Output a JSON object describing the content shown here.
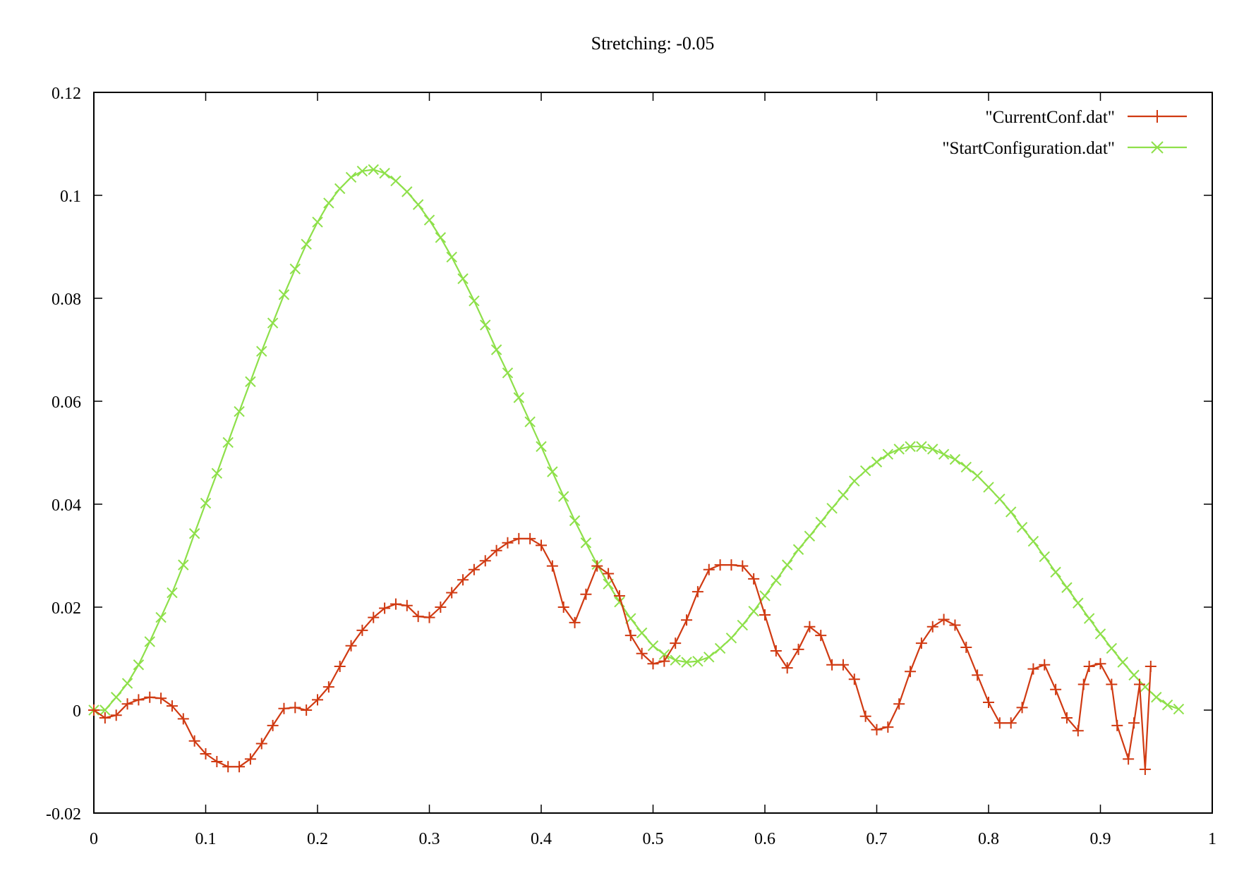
{
  "chart_data": {
    "type": "line",
    "title": "Stretching: -0.05",
    "xlabel": "",
    "ylabel": "",
    "xlim": [
      0,
      1
    ],
    "ylim": [
      -0.02,
      0.12
    ],
    "x_ticks": [
      "0",
      "0.1",
      "0.2",
      "0.3",
      "0.4",
      "0.5",
      "0.6",
      "0.7",
      "0.8",
      "0.9",
      "1"
    ],
    "y_ticks": [
      "-0.02",
      "0",
      "0.02",
      "0.04",
      "0.06",
      "0.08",
      "0.1",
      "0.12"
    ],
    "grid": false,
    "legend_position": "top-right",
    "series": [
      {
        "name": "\"CurrentConf.dat\"",
        "color": "#d03a12",
        "marker": "plus",
        "points": [
          [
            0.0,
            0.0
          ],
          [
            0.01,
            -0.0015
          ],
          [
            0.02,
            -0.001
          ],
          [
            0.03,
            0.0012
          ],
          [
            0.04,
            0.002
          ],
          [
            0.05,
            0.0025
          ],
          [
            0.06,
            0.0023
          ],
          [
            0.07,
            0.0008
          ],
          [
            0.08,
            -0.0017
          ],
          [
            0.09,
            -0.006
          ],
          [
            0.1,
            -0.0085
          ],
          [
            0.11,
            -0.01
          ],
          [
            0.12,
            -0.011
          ],
          [
            0.13,
            -0.011
          ],
          [
            0.14,
            -0.0095
          ],
          [
            0.15,
            -0.0065
          ],
          [
            0.16,
            -0.003
          ],
          [
            0.17,
            0.0003
          ],
          [
            0.18,
            0.0005
          ],
          [
            0.19,
            0.0
          ],
          [
            0.2,
            0.002
          ],
          [
            0.21,
            0.0045
          ],
          [
            0.22,
            0.0085
          ],
          [
            0.23,
            0.0125
          ],
          [
            0.24,
            0.0155
          ],
          [
            0.25,
            0.018
          ],
          [
            0.26,
            0.0198
          ],
          [
            0.27,
            0.0206
          ],
          [
            0.28,
            0.0203
          ],
          [
            0.29,
            0.0182
          ],
          [
            0.3,
            0.018
          ],
          [
            0.31,
            0.02
          ],
          [
            0.32,
            0.0228
          ],
          [
            0.33,
            0.0253
          ],
          [
            0.34,
            0.0273
          ],
          [
            0.35,
            0.029
          ],
          [
            0.36,
            0.031
          ],
          [
            0.37,
            0.0325
          ],
          [
            0.38,
            0.0333
          ],
          [
            0.39,
            0.0333
          ],
          [
            0.4,
            0.032
          ],
          [
            0.41,
            0.028
          ],
          [
            0.42,
            0.02
          ],
          [
            0.43,
            0.017
          ],
          [
            0.44,
            0.0225
          ],
          [
            0.45,
            0.028
          ],
          [
            0.46,
            0.0265
          ],
          [
            0.47,
            0.0222
          ],
          [
            0.48,
            0.0145
          ],
          [
            0.49,
            0.011
          ],
          [
            0.5,
            0.009
          ],
          [
            0.51,
            0.0095
          ],
          [
            0.52,
            0.013
          ],
          [
            0.53,
            0.0175
          ],
          [
            0.54,
            0.023
          ],
          [
            0.55,
            0.0273
          ],
          [
            0.56,
            0.0282
          ],
          [
            0.57,
            0.0282
          ],
          [
            0.58,
            0.028
          ],
          [
            0.59,
            0.0255
          ],
          [
            0.6,
            0.0185
          ],
          [
            0.61,
            0.0115
          ],
          [
            0.62,
            0.0082
          ],
          [
            0.63,
            0.0118
          ],
          [
            0.64,
            0.0162
          ],
          [
            0.65,
            0.0145
          ],
          [
            0.66,
            0.0088
          ],
          [
            0.67,
            0.0088
          ],
          [
            0.68,
            0.006
          ],
          [
            0.69,
            -0.0012
          ],
          [
            0.7,
            -0.0038
          ],
          [
            0.71,
            -0.0033
          ],
          [
            0.72,
            0.0012
          ],
          [
            0.73,
            0.0075
          ],
          [
            0.74,
            0.013
          ],
          [
            0.75,
            0.0162
          ],
          [
            0.76,
            0.0176
          ],
          [
            0.77,
            0.0165
          ],
          [
            0.78,
            0.0122
          ],
          [
            0.79,
            0.0068
          ],
          [
            0.8,
            0.0015
          ],
          [
            0.81,
            -0.0025
          ],
          [
            0.82,
            -0.0025
          ],
          [
            0.83,
            0.0005
          ],
          [
            0.84,
            0.008
          ],
          [
            0.85,
            0.0088
          ],
          [
            0.86,
            0.004
          ],
          [
            0.87,
            -0.0015
          ],
          [
            0.88,
            -0.004
          ],
          [
            0.885,
            0.005
          ],
          [
            0.89,
            0.0085
          ],
          [
            0.9,
            0.009
          ],
          [
            0.91,
            0.005
          ],
          [
            0.915,
            -0.003
          ],
          [
            0.925,
            -0.0095
          ],
          [
            0.93,
            -0.0025
          ],
          [
            0.935,
            0.005
          ],
          [
            0.94,
            -0.0115
          ],
          [
            0.945,
            0.0085
          ]
        ]
      },
      {
        "name": "\"StartConfiguration.dat\"",
        "color": "#8ee04a",
        "marker": "cross",
        "points": [
          [
            0.0,
            0.0
          ],
          [
            0.01,
            0.0
          ],
          [
            0.02,
            0.0025
          ],
          [
            0.03,
            0.0052
          ],
          [
            0.04,
            0.0088
          ],
          [
            0.05,
            0.0133
          ],
          [
            0.06,
            0.018
          ],
          [
            0.07,
            0.0228
          ],
          [
            0.08,
            0.0282
          ],
          [
            0.09,
            0.0343
          ],
          [
            0.1,
            0.0402
          ],
          [
            0.11,
            0.046
          ],
          [
            0.12,
            0.052
          ],
          [
            0.13,
            0.058
          ],
          [
            0.14,
            0.0638
          ],
          [
            0.15,
            0.0697
          ],
          [
            0.16,
            0.0752
          ],
          [
            0.17,
            0.0807
          ],
          [
            0.18,
            0.0857
          ],
          [
            0.19,
            0.0905
          ],
          [
            0.2,
            0.0948
          ],
          [
            0.21,
            0.0985
          ],
          [
            0.22,
            0.1013
          ],
          [
            0.23,
            0.1035
          ],
          [
            0.24,
            0.1047
          ],
          [
            0.25,
            0.105
          ],
          [
            0.26,
            0.1043
          ],
          [
            0.27,
            0.1028
          ],
          [
            0.28,
            0.1007
          ],
          [
            0.29,
            0.0982
          ],
          [
            0.3,
            0.0952
          ],
          [
            0.31,
            0.0918
          ],
          [
            0.32,
            0.088
          ],
          [
            0.33,
            0.0838
          ],
          [
            0.34,
            0.0795
          ],
          [
            0.35,
            0.0748
          ],
          [
            0.36,
            0.07
          ],
          [
            0.37,
            0.0655
          ],
          [
            0.38,
            0.0607
          ],
          [
            0.39,
            0.056
          ],
          [
            0.4,
            0.0512
          ],
          [
            0.41,
            0.0463
          ],
          [
            0.42,
            0.0415
          ],
          [
            0.43,
            0.0368
          ],
          [
            0.44,
            0.0325
          ],
          [
            0.45,
            0.0283
          ],
          [
            0.46,
            0.0245
          ],
          [
            0.47,
            0.021
          ],
          [
            0.48,
            0.0178
          ],
          [
            0.49,
            0.015
          ],
          [
            0.5,
            0.0125
          ],
          [
            0.51,
            0.0108
          ],
          [
            0.52,
            0.0097
          ],
          [
            0.53,
            0.0093
          ],
          [
            0.54,
            0.0095
          ],
          [
            0.55,
            0.0103
          ],
          [
            0.56,
            0.012
          ],
          [
            0.57,
            0.014
          ],
          [
            0.58,
            0.0165
          ],
          [
            0.59,
            0.0192
          ],
          [
            0.6,
            0.0222
          ],
          [
            0.61,
            0.0252
          ],
          [
            0.62,
            0.0282
          ],
          [
            0.63,
            0.0312
          ],
          [
            0.64,
            0.0338
          ],
          [
            0.65,
            0.0365
          ],
          [
            0.66,
            0.0392
          ],
          [
            0.67,
            0.0418
          ],
          [
            0.68,
            0.0445
          ],
          [
            0.69,
            0.0465
          ],
          [
            0.7,
            0.0482
          ],
          [
            0.71,
            0.0497
          ],
          [
            0.72,
            0.0507
          ],
          [
            0.73,
            0.0512
          ],
          [
            0.74,
            0.0512
          ],
          [
            0.75,
            0.0507
          ],
          [
            0.76,
            0.0497
          ],
          [
            0.77,
            0.0487
          ],
          [
            0.78,
            0.0472
          ],
          [
            0.79,
            0.0455
          ],
          [
            0.8,
            0.0433
          ],
          [
            0.81,
            0.041
          ],
          [
            0.82,
            0.0385
          ],
          [
            0.83,
            0.0355
          ],
          [
            0.84,
            0.0328
          ],
          [
            0.85,
            0.0298
          ],
          [
            0.86,
            0.0268
          ],
          [
            0.87,
            0.0238
          ],
          [
            0.88,
            0.0208
          ],
          [
            0.89,
            0.0178
          ],
          [
            0.9,
            0.0148
          ],
          [
            0.91,
            0.012
          ],
          [
            0.92,
            0.0093
          ],
          [
            0.93,
            0.0068
          ],
          [
            0.94,
            0.0045
          ],
          [
            0.95,
            0.0025
          ],
          [
            0.96,
            0.001
          ],
          [
            0.97,
            0.0002
          ]
        ]
      }
    ]
  }
}
